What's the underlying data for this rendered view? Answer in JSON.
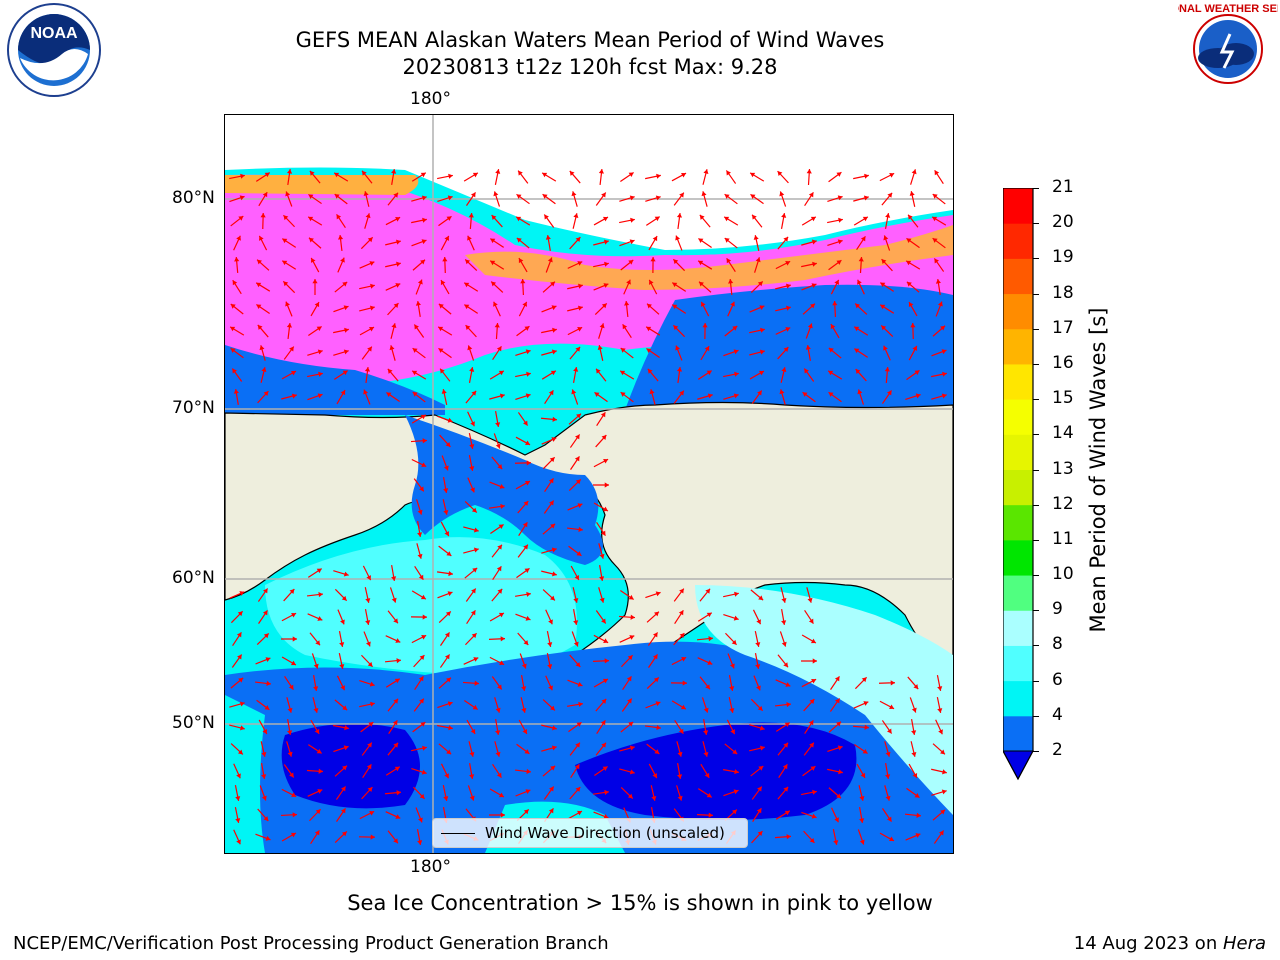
{
  "header": {
    "title_line1": "GEFS MEAN Alaskan Waters Mean Period of Wind Waves",
    "title_line2": "20230813 t12z 120h fcst   Max: 9.28"
  },
  "logos": {
    "left": "NOAA",
    "right": "NATIONAL WEATHER SERVICE"
  },
  "map": {
    "lon_top": "180°",
    "lon_bottom": "180°",
    "lat_labels": [
      "80°N",
      "70°N",
      "60°N",
      "50°N"
    ],
    "legend_label": "Wind Wave Direction (unscaled)",
    "colors": {
      "land": "#eeeedd",
      "sea_2_4": "#0a6ff5",
      "sea_lt2": "#0000e6",
      "sea_4_6": "#00f5f5",
      "sea_6_8": "#50ffff",
      "sea_8_9": "#aaffff",
      "ice_pink": "#ff60ff",
      "ice_orange": "#ffb040",
      "arrow": "#ff0000"
    }
  },
  "colorbar": {
    "title": "Mean Period of Wind Waves [s]",
    "ticks": [
      "2",
      "4",
      "6",
      "8",
      "9",
      "10",
      "11",
      "12",
      "13",
      "14",
      "15",
      "16",
      "17",
      "18",
      "19",
      "20",
      "21"
    ],
    "colors": [
      "#0a6ff5",
      "#00f5f5",
      "#50ffff",
      "#aaffff",
      "#50ff80",
      "#00e600",
      "#5ae600",
      "#c8f000",
      "#e6f500",
      "#f5ff00",
      "#ffe600",
      "#ffb400",
      "#ff8c00",
      "#ff5a00",
      "#ff2800",
      "#ff0000"
    ],
    "under_color": "#0000e6"
  },
  "notes": {
    "sea_ice": "Sea Ice Concentration > 15% is shown in pink to yellow"
  },
  "footer": {
    "left": "NCEP/EMC/Verification Post Processing Product Generation Branch",
    "right_date": "14 Aug 2023 on ",
    "right_host": "Hera"
  }
}
